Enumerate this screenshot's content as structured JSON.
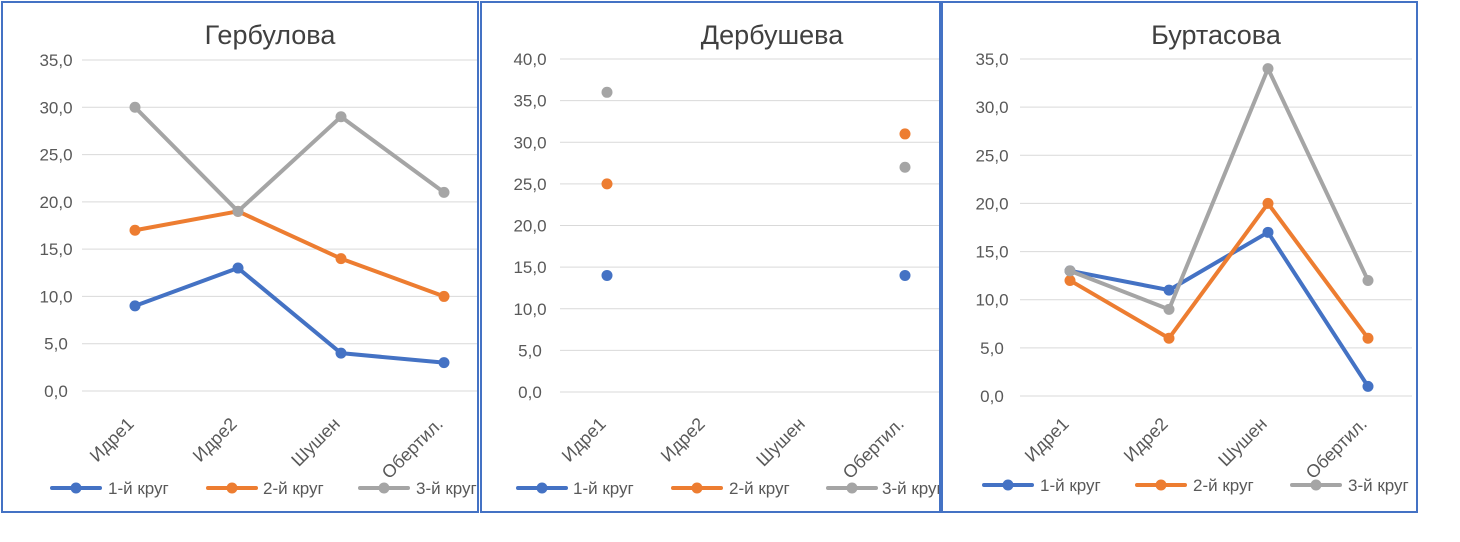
{
  "chart_data": [
    {
      "type": "line",
      "title": "Гербулова",
      "categories": [
        "Идре1",
        "Идре2",
        "Шушен",
        "Обертил."
      ],
      "ylim": [
        0,
        35
      ],
      "yticks": [
        "0,0",
        "5,0",
        "10,0",
        "15,0",
        "20,0",
        "25,0",
        "30,0",
        "35,0"
      ],
      "series": [
        {
          "name": "1-й круг",
          "values": [
            9,
            13,
            4,
            3
          ]
        },
        {
          "name": "2-й круг",
          "values": [
            17,
            19,
            14,
            10
          ]
        },
        {
          "name": "3-й круг",
          "values": [
            30,
            19,
            29,
            21
          ]
        }
      ]
    },
    {
      "type": "line",
      "title": "Дербушева",
      "categories": [
        "Идре1",
        "Идре2",
        "Шушен",
        "Обертил."
      ],
      "ylim": [
        0,
        40
      ],
      "yticks": [
        "0,0",
        "5,0",
        "10,0",
        "15,0",
        "20,0",
        "25,0",
        "30,0",
        "35,0",
        "40,0"
      ],
      "series": [
        {
          "name": "1-й круг",
          "values": [
            14,
            null,
            null,
            14
          ]
        },
        {
          "name": "2-й круг",
          "values": [
            25,
            null,
            null,
            31
          ]
        },
        {
          "name": "3-й круг",
          "values": [
            36,
            null,
            null,
            27
          ]
        }
      ]
    },
    {
      "type": "line",
      "title": "Буртасова",
      "categories": [
        "Идре1",
        "Идре2",
        "Шушен",
        "Обертил."
      ],
      "ylim": [
        0,
        35
      ],
      "yticks": [
        "0,0",
        "5,0",
        "10,0",
        "15,0",
        "20,0",
        "25,0",
        "30,0",
        "35,0"
      ],
      "series": [
        {
          "name": "1-й круг",
          "values": [
            13,
            11,
            17,
            1
          ]
        },
        {
          "name": "2-й круг",
          "values": [
            12,
            6,
            20,
            6
          ]
        },
        {
          "name": "3-й круг",
          "values": [
            13,
            9,
            34,
            12
          ]
        }
      ]
    }
  ],
  "colors": {
    "series": [
      "#4472C4",
      "#ED7D31",
      "#A5A5A5"
    ],
    "grid": "#D9D9D9",
    "frame": "#4472C4"
  }
}
